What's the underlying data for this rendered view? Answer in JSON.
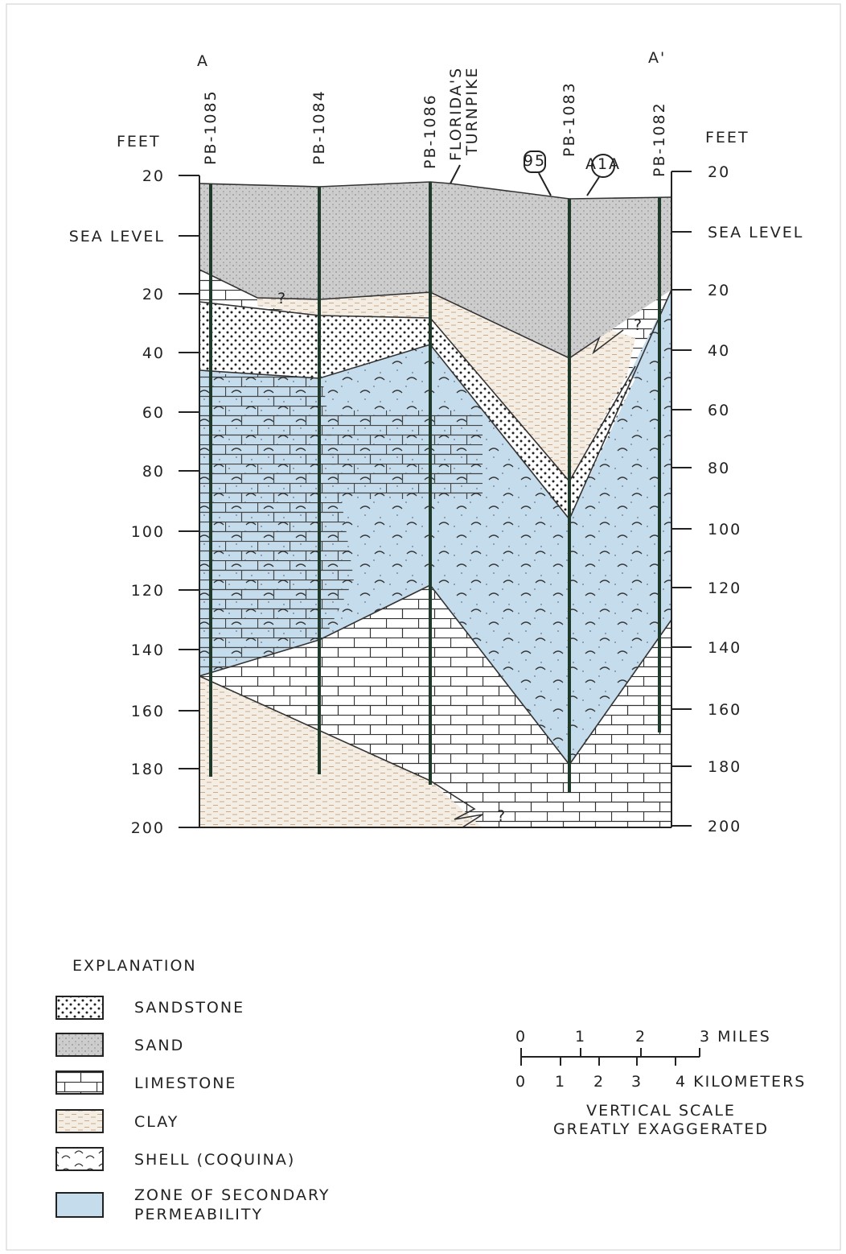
{
  "section_labels": {
    "start": "A",
    "end": "A'"
  },
  "left_axis": {
    "title": "FEET",
    "labels": [
      "20",
      "SEA LEVEL",
      "20",
      "40",
      "60",
      "80",
      "100",
      "120",
      "140",
      "160",
      "180",
      "200"
    ]
  },
  "right_axis": {
    "title": "FEET",
    "labels": [
      "20",
      "SEA LEVEL",
      "20",
      "40",
      "60",
      "80",
      "100",
      "120",
      "140",
      "160",
      "180",
      "200"
    ]
  },
  "wells": [
    "PB-1085",
    "PB-1084",
    "PB-1086",
    "PB-1083",
    "PB-1082"
  ],
  "roads": {
    "turnpike": [
      "FLORIDA'S",
      "TURNPIKE"
    ],
    "interstate": "95",
    "state_road": "A1A"
  },
  "uncertain_contacts": [
    "?",
    "?",
    "?"
  ],
  "legend": {
    "title": "EXPLANATION",
    "items": [
      {
        "lines": [
          "SANDSTONE"
        ]
      },
      {
        "lines": [
          "SAND"
        ]
      },
      {
        "lines": [
          "LIMESTONE"
        ]
      },
      {
        "lines": [
          "CLAY"
        ]
      },
      {
        "lines": [
          "SHELL (COQUINA)"
        ]
      },
      {
        "lines": [
          "ZONE OF SECONDARY",
          "PERMEABILITY"
        ]
      }
    ]
  },
  "scale": {
    "miles": [
      "0",
      "1",
      "2",
      "3 MILES"
    ],
    "kilometers": [
      "0",
      "1",
      "2",
      "3",
      "4 KILOMETERS"
    ],
    "note": [
      "VERTICAL SCALE",
      "GREATLY EXAGGERATED"
    ]
  }
}
